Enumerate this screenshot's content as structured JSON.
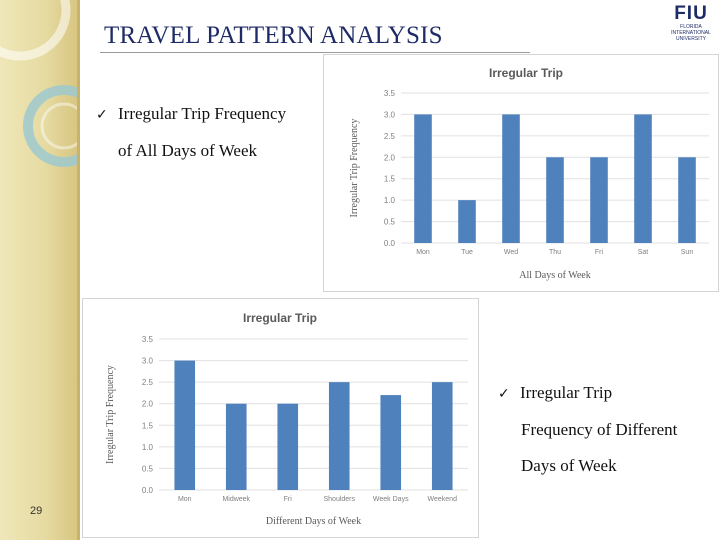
{
  "slide": {
    "title": "TRAVEL PATTERN ANALYSIS",
    "page_number": "29",
    "logo": {
      "mark": "FIU",
      "line1": "FLORIDA",
      "line2": "INTERNATIONAL",
      "line3": "UNIVERSITY"
    },
    "bullets": [
      {
        "icon": "checkmark-icon",
        "symbol": "✓",
        "line1": "Irregular Trip Frequency",
        "line2": "of All Days of Week"
      },
      {
        "icon": "checkmark-icon",
        "symbol": "✓",
        "line1": "Irregular Trip",
        "line2": "Frequency of Different",
        "line3": "Days of Week"
      }
    ],
    "colors": {
      "bar": "#4f81bd",
      "title": "#1f2b66",
      "sidebar": "#e6dba2"
    }
  },
  "chart_data": [
    {
      "type": "bar",
      "title": "Irregular Trip",
      "xlabel": "All Days of Week",
      "ylabel": "Irregular Trip Frequency",
      "categories": [
        "Mon",
        "Tue",
        "Wed",
        "Thu",
        "Fri",
        "Sat",
        "Sun"
      ],
      "values": [
        3.0,
        1.0,
        3.0,
        2.0,
        2.0,
        3.0,
        2.0
      ],
      "ylim": [
        0,
        3.5
      ],
      "yticks": [
        "0.0",
        "0.5",
        "1.0",
        "1.5",
        "2.0",
        "2.5",
        "3.0",
        "3.5"
      ],
      "grid": true
    },
    {
      "type": "bar",
      "title": "Irregular Trip",
      "xlabel": "Different Days of Week",
      "ylabel": "Irregular Trip Frequency",
      "categories": [
        "Mon",
        "Midweek",
        "Fri",
        "Shoulders",
        "Week Days",
        "Weekend"
      ],
      "values": [
        3.0,
        2.0,
        2.0,
        2.5,
        2.2,
        2.5
      ],
      "ylim": [
        0,
        3.5
      ],
      "yticks": [
        "0.0",
        "0.5",
        "1.0",
        "1.5",
        "2.0",
        "2.5",
        "3.0",
        "3.5"
      ],
      "grid": true
    }
  ]
}
